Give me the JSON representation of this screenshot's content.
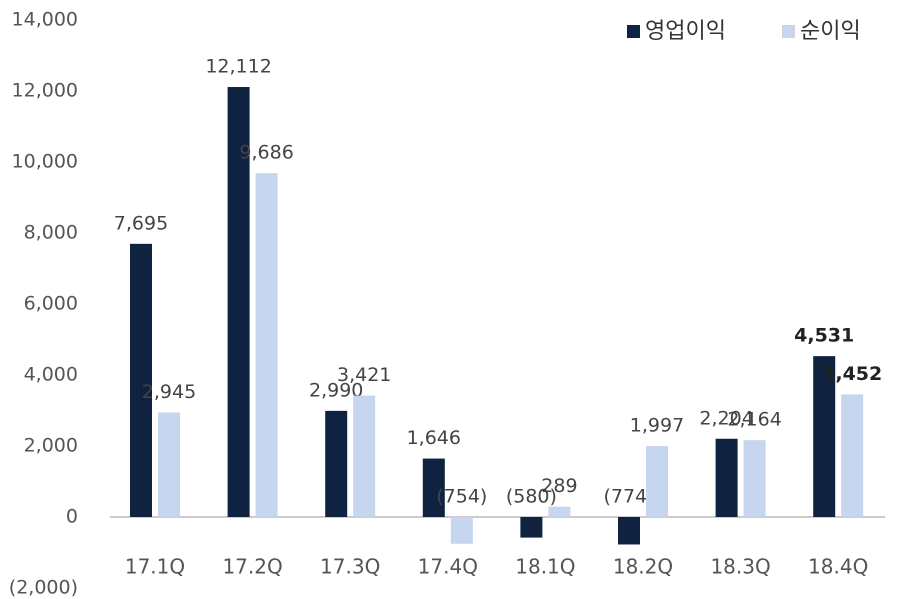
{
  "chart_data": {
    "type": "bar",
    "categories": [
      "17.1Q",
      "17.2Q",
      "17.3Q",
      "17.4Q",
      "18.1Q",
      "18.2Q",
      "18.3Q",
      "18.4Q"
    ],
    "series": [
      {
        "name": "영업이익",
        "color": "#0f2340",
        "values": [
          7695,
          12112,
          2990,
          1646,
          -580,
          -774,
          2204,
          4531
        ],
        "value_labels": [
          "7,695",
          "12,112",
          "2,990",
          "1,646",
          "(580)",
          "(774)",
          "2,204",
          "4,531"
        ]
      },
      {
        "name": "순이익",
        "color": "#c5d6ee",
        "values": [
          2945,
          9686,
          3421,
          -754,
          289,
          1997,
          2164,
          3452
        ],
        "value_labels": [
          "2,945",
          "9,686",
          "3,421",
          "(754)",
          "289",
          "1,997",
          "2,164",
          "3,452"
        ]
      }
    ],
    "ylim": [
      -2000,
      14000
    ],
    "yticks": [
      {
        "value": -2000,
        "label": "(2,000)"
      },
      0,
      {
        "value": 2000,
        "label": "2,000"
      },
      {
        "value": 4000,
        "label": "4,000"
      },
      {
        "value": 6000,
        "label": "6,000"
      },
      {
        "value": 8000,
        "label": "8,000"
      },
      {
        "value": 10000,
        "label": "10,000"
      },
      {
        "value": 12000,
        "label": "12,000"
      },
      {
        "value": 14000,
        "label": "14,000"
      }
    ],
    "grid": false,
    "legend": "top-right"
  }
}
